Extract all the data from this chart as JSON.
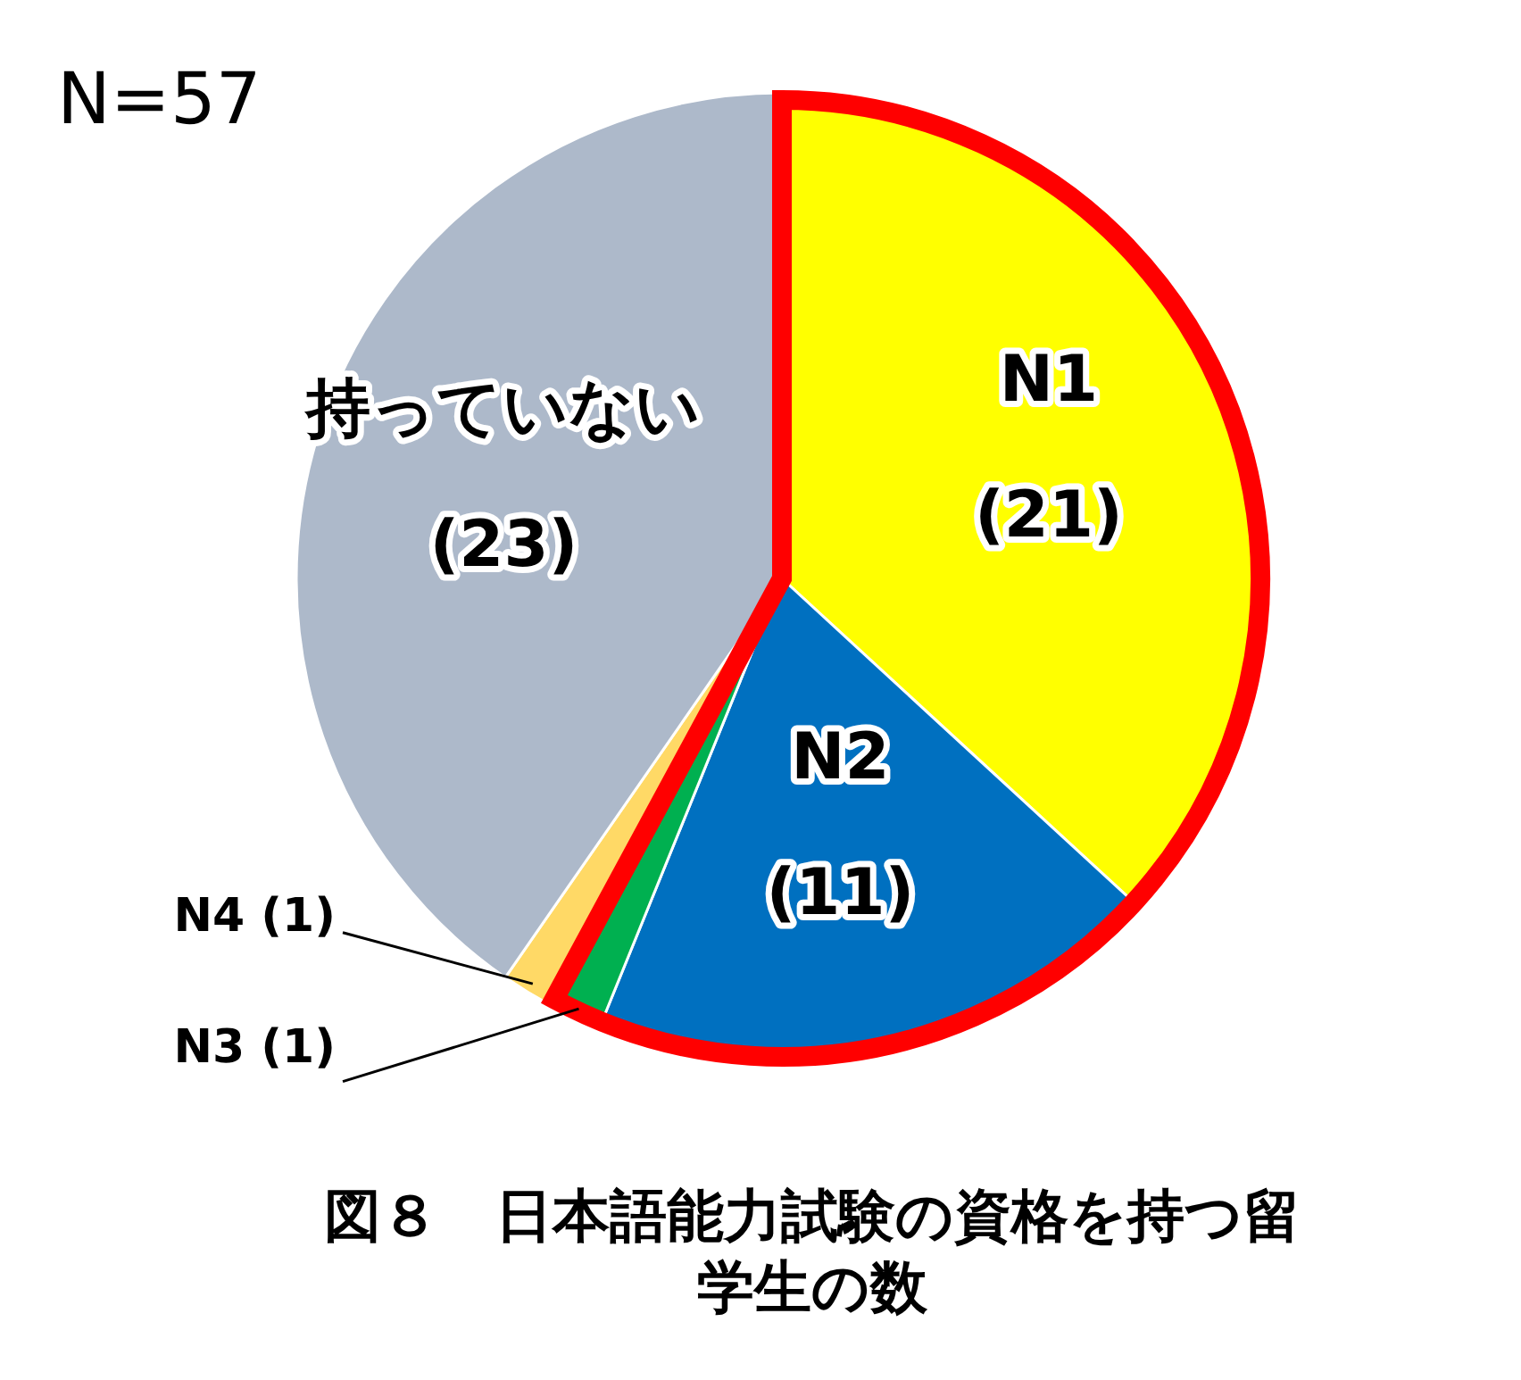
{
  "chart_data": {
    "type": "pie",
    "title": "図８　日本語能力試験の資格を持つ留学生の数",
    "annotations": [
      "N=57"
    ],
    "categories": [
      "N1",
      "N2",
      "N3",
      "N4",
      "持っていない"
    ],
    "values": [
      21,
      11,
      1,
      1,
      23
    ],
    "value_labels": [
      "(21)",
      "(11)",
      "(1)",
      "(1)",
      "(23)"
    ],
    "colors": [
      "#ffff00",
      "#0070c0",
      "#00b050",
      "#ffd966",
      "#adb9ca"
    ],
    "legend": false
  }
}
